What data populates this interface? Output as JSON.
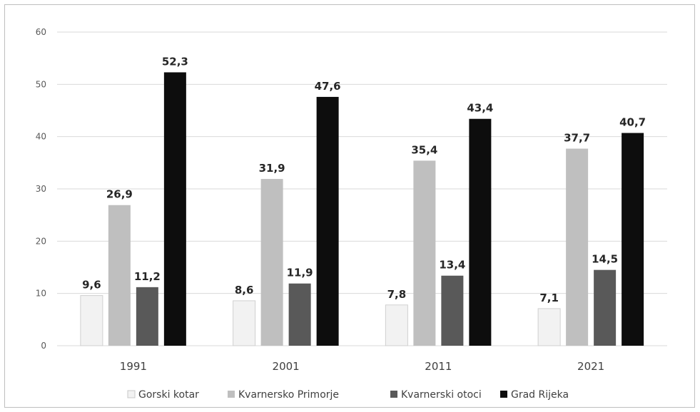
{
  "chart_data": {
    "type": "bar",
    "categories": [
      "1991",
      "2001",
      "2011",
      "2021"
    ],
    "series": [
      {
        "name": "Gorski kotar",
        "values": [
          "9,6",
          "8,6",
          "7,8",
          "7,1"
        ],
        "color": "#f2f2f2"
      },
      {
        "name": "Kvarnersko Primorje",
        "values": [
          "26,9",
          "31,9",
          "35,4",
          "37,7"
        ],
        "color": "#bfbfbf"
      },
      {
        "name": "Kvarnerski otoci",
        "values": [
          "11,2",
          "11,9",
          "13,4",
          "14,5"
        ],
        "color": "#595959"
      },
      {
        "name": "Grad Rijeka",
        "values": [
          "52,3",
          "47,6",
          "43,4",
          "40,7"
        ],
        "color": "#0d0d0d"
      }
    ],
    "y_ticks": [
      "0",
      "10",
      "20",
      "30",
      "40",
      "50",
      "60"
    ],
    "ylim": [
      0,
      60
    ],
    "grid": true,
    "legend_position": "bottom",
    "title": "",
    "xlabel": "",
    "ylabel": ""
  }
}
